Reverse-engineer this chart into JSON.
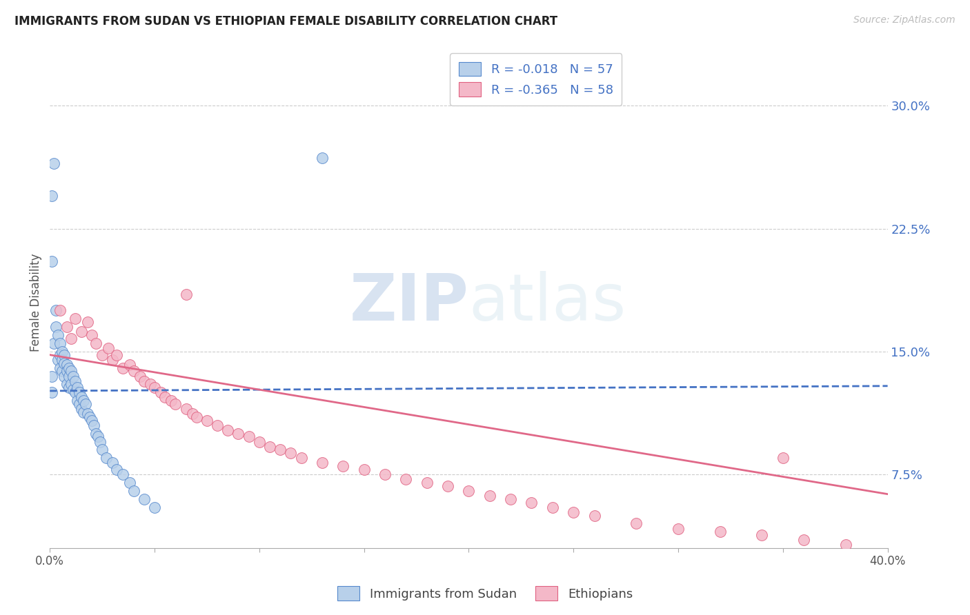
{
  "title": "IMMIGRANTS FROM SUDAN VS ETHIOPIAN FEMALE DISABILITY CORRELATION CHART",
  "source": "Source: ZipAtlas.com",
  "ylabel": "Female Disability",
  "ytick_labels": [
    "7.5%",
    "15.0%",
    "22.5%",
    "30.0%"
  ],
  "ytick_values": [
    0.075,
    0.15,
    0.225,
    0.3
  ],
  "legend_blue_r": "-0.018",
  "legend_blue_n": "57",
  "legend_pink_r": "-0.365",
  "legend_pink_n": "58",
  "blue_fill": "#b8d0ea",
  "pink_fill": "#f4b8c8",
  "blue_edge": "#5588cc",
  "pink_edge": "#e06080",
  "blue_line_color": "#4472c4",
  "pink_line_color": "#e06888",
  "xmin": 0.0,
  "xmax": 0.4,
  "ymin": 0.03,
  "ymax": 0.33,
  "watermark_zip": "ZIP",
  "watermark_atlas": "atlas",
  "background_color": "#ffffff",
  "grid_color": "#cccccc",
  "title_color": "#222222",
  "axis_color": "#4472c4",
  "legend_label_blue": "Immigrants from Sudan",
  "legend_label_pink": "Ethiopians",
  "blue_trend_x0": 0.0,
  "blue_trend_y0": 0.126,
  "blue_trend_x1": 0.4,
  "blue_trend_y1": 0.129,
  "pink_trend_x0": 0.0,
  "pink_trend_y0": 0.148,
  "pink_trend_x1": 0.4,
  "pink_trend_y1": 0.063,
  "blue_x": [
    0.002,
    0.001,
    0.001,
    0.001,
    0.002,
    0.003,
    0.003,
    0.004,
    0.004,
    0.005,
    0.005,
    0.005,
    0.006,
    0.006,
    0.006,
    0.007,
    0.007,
    0.007,
    0.008,
    0.008,
    0.008,
    0.009,
    0.009,
    0.009,
    0.01,
    0.01,
    0.011,
    0.011,
    0.012,
    0.012,
    0.013,
    0.013,
    0.014,
    0.014,
    0.015,
    0.015,
    0.016,
    0.016,
    0.017,
    0.018,
    0.019,
    0.02,
    0.021,
    0.022,
    0.023,
    0.024,
    0.025,
    0.027,
    0.03,
    0.032,
    0.035,
    0.038,
    0.04,
    0.045,
    0.05,
    0.13,
    0.001
  ],
  "blue_y": [
    0.265,
    0.245,
    0.135,
    0.125,
    0.155,
    0.175,
    0.165,
    0.16,
    0.145,
    0.155,
    0.148,
    0.14,
    0.15,
    0.145,
    0.138,
    0.148,
    0.143,
    0.135,
    0.142,
    0.138,
    0.13,
    0.14,
    0.135,
    0.128,
    0.138,
    0.13,
    0.135,
    0.127,
    0.132,
    0.125,
    0.128,
    0.12,
    0.125,
    0.118,
    0.122,
    0.115,
    0.12,
    0.113,
    0.118,
    0.112,
    0.11,
    0.108,
    0.105,
    0.1,
    0.098,
    0.095,
    0.09,
    0.085,
    0.082,
    0.078,
    0.075,
    0.07,
    0.065,
    0.06,
    0.055,
    0.268,
    0.205
  ],
  "pink_x": [
    0.005,
    0.008,
    0.01,
    0.012,
    0.015,
    0.018,
    0.02,
    0.022,
    0.025,
    0.028,
    0.03,
    0.032,
    0.035,
    0.038,
    0.04,
    0.043,
    0.045,
    0.048,
    0.05,
    0.053,
    0.055,
    0.058,
    0.06,
    0.065,
    0.068,
    0.07,
    0.075,
    0.08,
    0.085,
    0.09,
    0.095,
    0.1,
    0.105,
    0.11,
    0.115,
    0.12,
    0.13,
    0.14,
    0.15,
    0.16,
    0.17,
    0.18,
    0.19,
    0.2,
    0.21,
    0.22,
    0.23,
    0.24,
    0.25,
    0.26,
    0.28,
    0.3,
    0.32,
    0.34,
    0.35,
    0.36,
    0.38,
    0.065
  ],
  "pink_y": [
    0.175,
    0.165,
    0.158,
    0.17,
    0.162,
    0.168,
    0.16,
    0.155,
    0.148,
    0.152,
    0.145,
    0.148,
    0.14,
    0.142,
    0.138,
    0.135,
    0.132,
    0.13,
    0.128,
    0.125,
    0.122,
    0.12,
    0.118,
    0.115,
    0.112,
    0.11,
    0.108,
    0.105,
    0.102,
    0.1,
    0.098,
    0.095,
    0.092,
    0.09,
    0.088,
    0.085,
    0.082,
    0.08,
    0.078,
    0.075,
    0.072,
    0.07,
    0.068,
    0.065,
    0.062,
    0.06,
    0.058,
    0.055,
    0.052,
    0.05,
    0.045,
    0.042,
    0.04,
    0.038,
    0.085,
    0.035,
    0.032,
    0.185
  ]
}
